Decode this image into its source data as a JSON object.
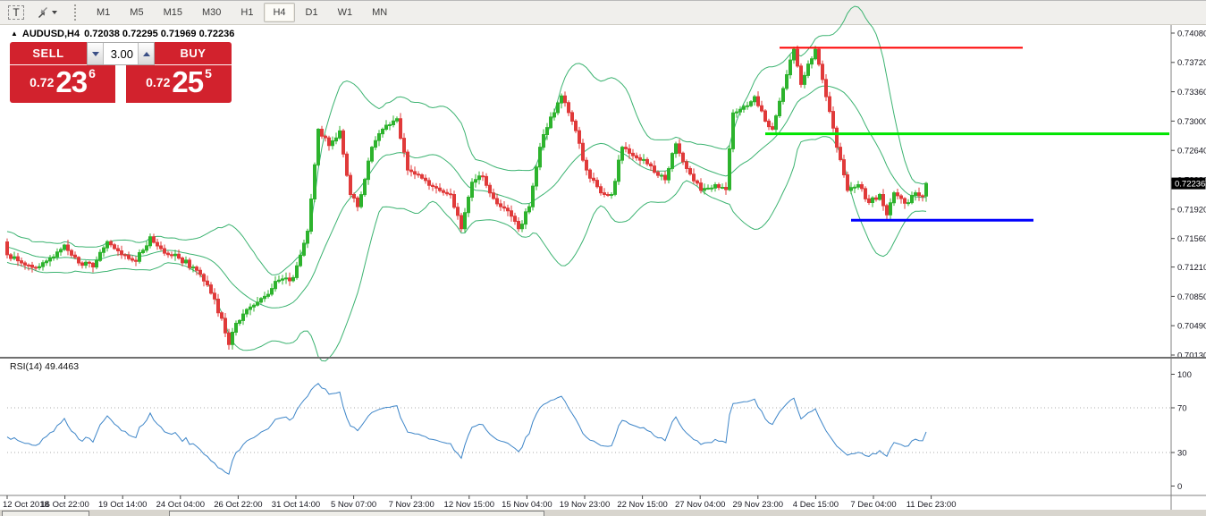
{
  "toolbar": {
    "text_tool_glyph": "T",
    "timeframes": [
      "M1",
      "M5",
      "M15",
      "M30",
      "H1",
      "H4",
      "D1",
      "W1",
      "MN"
    ],
    "active_timeframe": "H4"
  },
  "title": {
    "symbol_period": "AUDUSD,H4",
    "ohlc": "0.72038 0.72295 0.71969 0.72236"
  },
  "trade_panel": {
    "sell_label": "SELL",
    "buy_label": "BUY",
    "volume": "3.00",
    "sell_price": {
      "prefix": "0.72",
      "big": "23",
      "sup": "6"
    },
    "buy_price": {
      "prefix": "0.72",
      "big": "25",
      "sup": "5"
    }
  },
  "rsi_panel": {
    "indicator_name": "RSI(14)",
    "indicator_value": "49.4463"
  },
  "chart_data": {
    "type": "candlestick",
    "symbol": "AUDUSD",
    "period": "H4",
    "ohlc_display": {
      "open": "0.72038",
      "high": "0.72295",
      "low": "0.71969",
      "close": "0.72236"
    },
    "current_price": "0.72236",
    "last_close": 0.72236,
    "candle_count": 258,
    "colors": {
      "bull": "#2db32d",
      "bear": "#e03a3a",
      "bollinger": "#3cb371",
      "rsi_line": "#3d85c8",
      "level_red": "#fe0000",
      "level_green": "#00e400",
      "level_blue": "#0000fe",
      "axis_text": "#16161f"
    },
    "y_axis": {
      "max_price": 0.7408,
      "min_price": 0.7013,
      "ticks": [
        "0.74080",
        "0.73720",
        "0.73360",
        "0.73000",
        "0.72640",
        "0.72280",
        "0.71920",
        "0.71560",
        "0.71210",
        "0.70850",
        "0.70490",
        "0.70130"
      ]
    },
    "x_axis": {
      "ticks": [
        "12 Oct 2018",
        "16 Oct 22:00",
        "19 Oct 14:00",
        "24 Oct 04:00",
        "26 Oct 22:00",
        "31 Oct 14:00",
        "5 Nov 07:00",
        "7 Nov 23:00",
        "12 Nov 15:00",
        "15 Nov 04:00",
        "19 Nov 23:00",
        "22 Nov 15:00",
        "27 Nov 04:00",
        "29 Nov 23:00",
        "4 Dec 15:00",
        "7 Dec 04:00",
        "11 Dec 23:00"
      ]
    },
    "price_path": [
      [
        0,
        0.7136
      ],
      [
        4,
        0.7126
      ],
      [
        8,
        0.712
      ],
      [
        12,
        0.7132
      ],
      [
        16,
        0.7148
      ],
      [
        20,
        0.7126
      ],
      [
        24,
        0.7121
      ],
      [
        28,
        0.7152
      ],
      [
        32,
        0.7136
      ],
      [
        36,
        0.7128
      ],
      [
        40,
        0.7158
      ],
      [
        44,
        0.7138
      ],
      [
        48,
        0.7132
      ],
      [
        52,
        0.7121
      ],
      [
        56,
        0.7099
      ],
      [
        60,
        0.7058
      ],
      [
        62,
        0.7026
      ],
      [
        64,
        0.7052
      ],
      [
        68,
        0.7072
      ],
      [
        72,
        0.7085
      ],
      [
        76,
        0.7105
      ],
      [
        80,
        0.7108
      ],
      [
        84,
        0.7165
      ],
      [
        87,
        0.729
      ],
      [
        90,
        0.727
      ],
      [
        93,
        0.7288
      ],
      [
        96,
        0.721
      ],
      [
        98,
        0.7195
      ],
      [
        102,
        0.7268
      ],
      [
        106,
        0.7295
      ],
      [
        109,
        0.7303
      ],
      [
        112,
        0.724
      ],
      [
        116,
        0.723
      ],
      [
        120,
        0.7218
      ],
      [
        124,
        0.721
      ],
      [
        127,
        0.7168
      ],
      [
        130,
        0.7225
      ],
      [
        133,
        0.7232
      ],
      [
        136,
        0.7205
      ],
      [
        140,
        0.719
      ],
      [
        143,
        0.7168
      ],
      [
        146,
        0.7195
      ],
      [
        149,
        0.7268
      ],
      [
        152,
        0.7305
      ],
      [
        155,
        0.7331
      ],
      [
        158,
        0.73
      ],
      [
        162,
        0.724
      ],
      [
        166,
        0.7212
      ],
      [
        169,
        0.721
      ],
      [
        172,
        0.7268
      ],
      [
        176,
        0.7255
      ],
      [
        180,
        0.7245
      ],
      [
        184,
        0.7228
      ],
      [
        187,
        0.7272
      ],
      [
        191,
        0.7235
      ],
      [
        194,
        0.7215
      ],
      [
        198,
        0.7222
      ],
      [
        201,
        0.7216
      ],
      [
        203,
        0.731
      ],
      [
        206,
        0.7318
      ],
      [
        209,
        0.733
      ],
      [
        212,
        0.73
      ],
      [
        214,
        0.729
      ],
      [
        217,
        0.734
      ],
      [
        220,
        0.7388
      ],
      [
        222,
        0.7345
      ],
      [
        224,
        0.737
      ],
      [
        226,
        0.7388
      ],
      [
        229,
        0.733
      ],
      [
        232,
        0.7268
      ],
      [
        235,
        0.7215
      ],
      [
        238,
        0.7222
      ],
      [
        241,
        0.72
      ],
      [
        244,
        0.721
      ],
      [
        246,
        0.7185
      ],
      [
        248,
        0.7212
      ],
      [
        250,
        0.7205
      ],
      [
        252,
        0.72
      ],
      [
        254,
        0.7212
      ],
      [
        256,
        0.7208
      ],
      [
        257,
        0.72236
      ]
    ],
    "indicators": {
      "bollinger": {
        "period": 20,
        "deviation": 2
      },
      "rsi": {
        "period": 14,
        "current": "49.4463",
        "levels": [
          30,
          70
        ],
        "scale_ticks": [
          100,
          70,
          30,
          0
        ]
      }
    },
    "levels": [
      {
        "name": "resistance-red",
        "price": 0.739,
        "from_index": 216,
        "to_index": 284,
        "color_key": "level_red",
        "width": 2
      },
      {
        "name": "resistance-green",
        "price": 0.72845,
        "from_index": 212,
        "to_index": 325,
        "color_key": "level_green",
        "width": 3
      },
      {
        "name": "support-blue",
        "price": 0.71785,
        "from_index": 236,
        "to_index": 287,
        "color_key": "level_blue",
        "width": 3
      }
    ]
  }
}
